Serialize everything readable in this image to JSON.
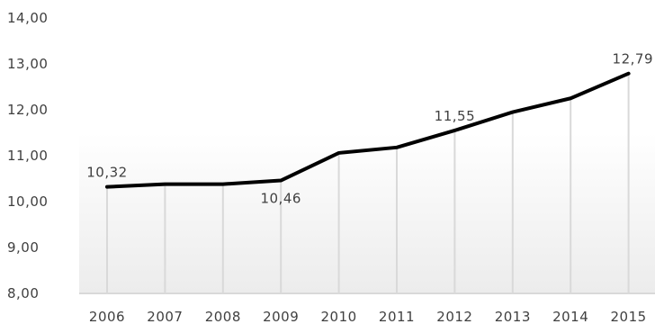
{
  "chart_data": {
    "type": "line",
    "categories": [
      "2006",
      "2007",
      "2008",
      "2009",
      "2010",
      "2011",
      "2012",
      "2013",
      "2014",
      "2015"
    ],
    "series": [
      {
        "values": [
          10.32,
          10.38,
          10.38,
          10.46,
          11.06,
          11.18,
          11.55,
          11.95,
          12.25,
          12.79
        ]
      }
    ],
    "data_labels": [
      {
        "index": 0,
        "text": "10,32",
        "placement": "above"
      },
      {
        "index": 3,
        "text": "10,46",
        "placement": "below"
      },
      {
        "index": 6,
        "text": "11,55",
        "placement": "above"
      },
      {
        "index": 9,
        "text": "12,79",
        "placement": "above"
      }
    ],
    "ylim": [
      8,
      14
    ],
    "yticks": [
      "8,00",
      "9,00",
      "10,00",
      "11,00",
      "12,00",
      "13,00",
      "14,00"
    ],
    "title": "",
    "xlabel": "",
    "ylabel": "",
    "grid": "vertical drop lines",
    "legend": "none",
    "colors": {
      "line": "#000000",
      "droplines": "#d9d9d9",
      "axis": "#d9d9d9",
      "area_gradient_bottom": "#ececec"
    }
  }
}
